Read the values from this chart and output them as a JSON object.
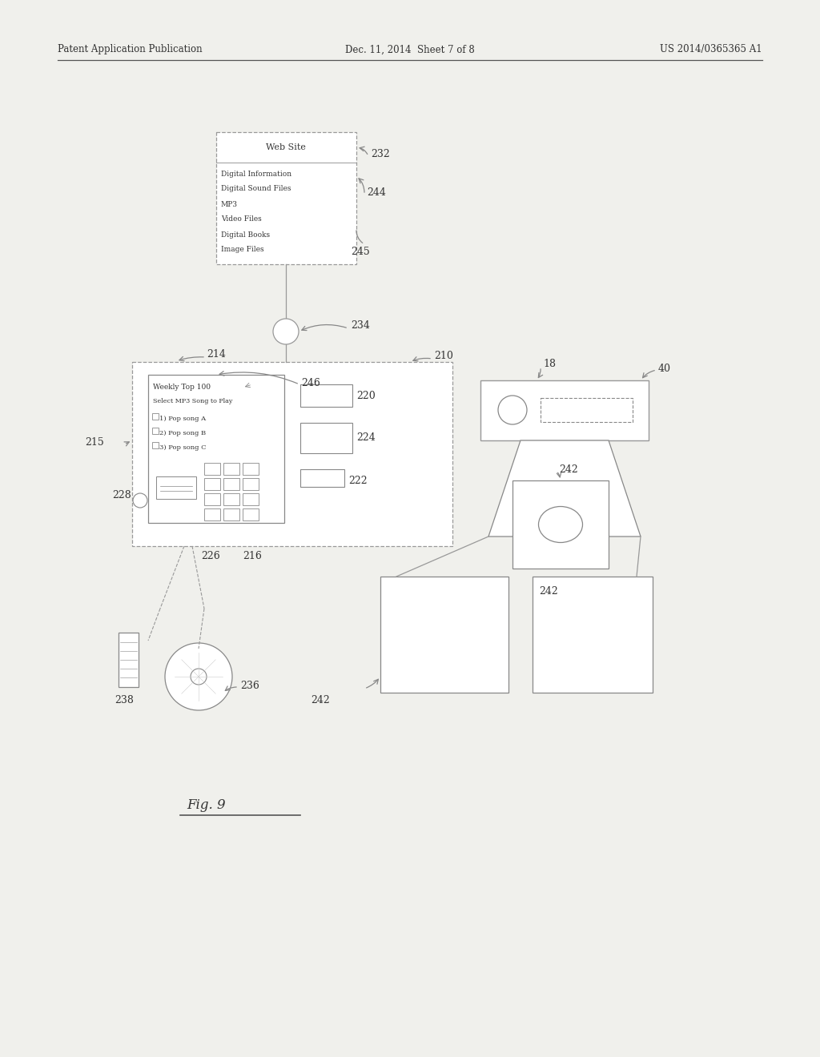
{
  "bg_color": "#f0f0ec",
  "line_color": "#888888",
  "text_color": "#333333",
  "header_left": "Patent Application Publication",
  "header_mid": "Dec. 11, 2014  Sheet 7 of 8",
  "header_right": "US 2014/0365365 A1",
  "figure_label": "Fig. 9",
  "website_content": [
    "Digital Information",
    "Digital Sound Files",
    "MP3",
    "Video Files",
    "Digital Books",
    "Image Files"
  ]
}
